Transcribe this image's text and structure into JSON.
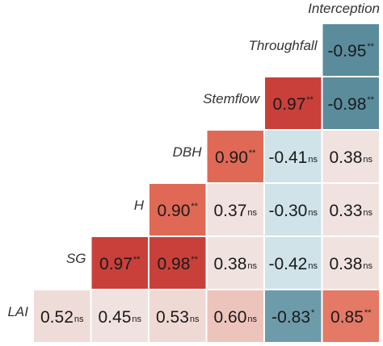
{
  "chart_data": {
    "type": "heatmap",
    "variables": [
      "Interception",
      "Throughfall",
      "Stemflow",
      "DBH",
      "H",
      "SG",
      "LAI"
    ],
    "cells": [
      {
        "row": "Throughfall",
        "col": "Interception",
        "value": "-0.95",
        "sig": "**"
      },
      {
        "row": "Stemflow",
        "col": "Throughfall",
        "value": "0.97",
        "sig": "**"
      },
      {
        "row": "Stemflow",
        "col": "Interception",
        "value": "-0.98",
        "sig": "**"
      },
      {
        "row": "DBH",
        "col": "Stemflow",
        "value": "0.90",
        "sig": "**"
      },
      {
        "row": "DBH",
        "col": "Throughfall",
        "value": "-0.41",
        "sig": "ns"
      },
      {
        "row": "DBH",
        "col": "Interception",
        "value": "0.38",
        "sig": "ns"
      },
      {
        "row": "H",
        "col": "DBH",
        "value": "0.90",
        "sig": "**"
      },
      {
        "row": "H",
        "col": "Stemflow",
        "value": "0.37",
        "sig": "ns"
      },
      {
        "row": "H",
        "col": "Throughfall",
        "value": "-0.30",
        "sig": "ns"
      },
      {
        "row": "H",
        "col": "Interception",
        "value": "0.33",
        "sig": "ns"
      },
      {
        "row": "SG",
        "col": "H",
        "value": "0.97",
        "sig": "**"
      },
      {
        "row": "SG",
        "col": "DBH",
        "value": "0.98",
        "sig": "**"
      },
      {
        "row": "SG",
        "col": "Stemflow",
        "value": "0.38",
        "sig": "ns"
      },
      {
        "row": "SG",
        "col": "Throughfall",
        "value": "-0.42",
        "sig": "ns"
      },
      {
        "row": "SG",
        "col": "Interception",
        "value": "0.38",
        "sig": "ns"
      },
      {
        "row": "LAI",
        "col": "SG",
        "value": "0.52",
        "sig": "ns"
      },
      {
        "row": "LAI",
        "col": "H",
        "value": "0.45",
        "sig": "ns"
      },
      {
        "row": "LAI",
        "col": "DBH",
        "value": "0.53",
        "sig": "ns"
      },
      {
        "row": "LAI",
        "col": "Stemflow",
        "value": "0.60",
        "sig": "ns"
      },
      {
        "row": "LAI",
        "col": "Throughfall",
        "value": "-0.83",
        "sig": "*"
      },
      {
        "row": "LAI",
        "col": "Interception",
        "value": "0.85",
        "sig": "**"
      }
    ],
    "colors": {
      "positive_strong": "#c9403a",
      "positive_mid": "#e3705a",
      "positive_weak": "#f0e2df",
      "negative_strong": "#5a8c9c",
      "negative_weak": "#cfe3e8"
    }
  }
}
